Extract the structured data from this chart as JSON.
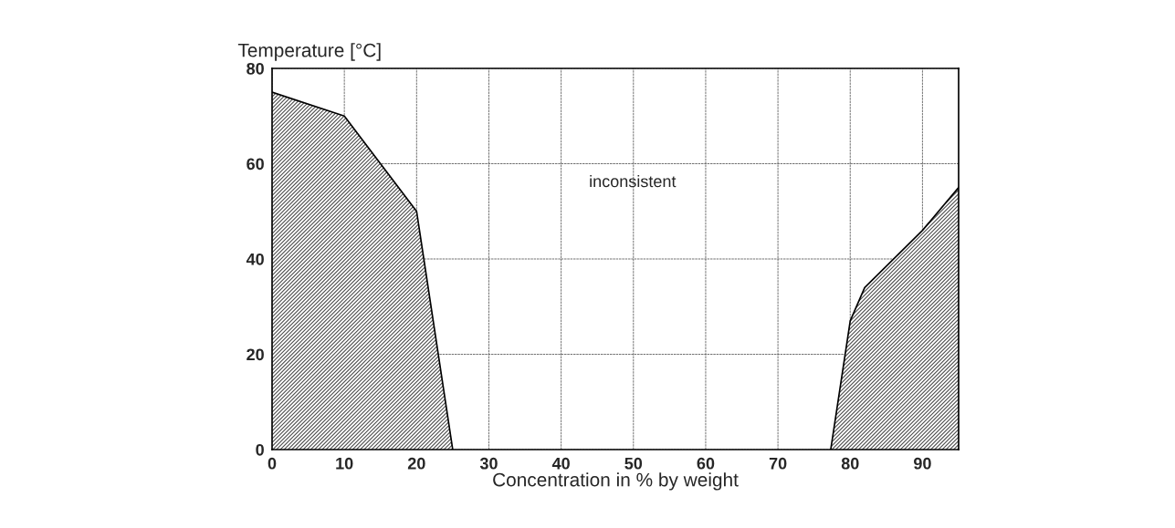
{
  "chart_data": {
    "type": "area",
    "xlabel": "Concentration in % by weight",
    "ylabel": "Temperature [°C]",
    "series": [
      {
        "color": "#4a4a4a",
        "x": [
          0,
          10,
          20,
          25
        ],
        "values": [
          75,
          70,
          50,
          0
        ]
      },
      {
        "color": "#4a4a4a",
        "x": [
          77.3,
          80,
          82,
          90,
          95
        ],
        "values": [
          0,
          27,
          34,
          46,
          55
        ]
      }
    ],
    "annotations": [
      "inconsistent"
    ],
    "xlim": [
      0,
      95
    ],
    "ylim": [
      0,
      80
    ],
    "xticks": [
      0,
      10,
      20,
      30,
      40,
      50,
      60,
      70,
      80,
      90
    ],
    "yticks": [
      0,
      20,
      40,
      60,
      80
    ],
    "grid": true
  }
}
